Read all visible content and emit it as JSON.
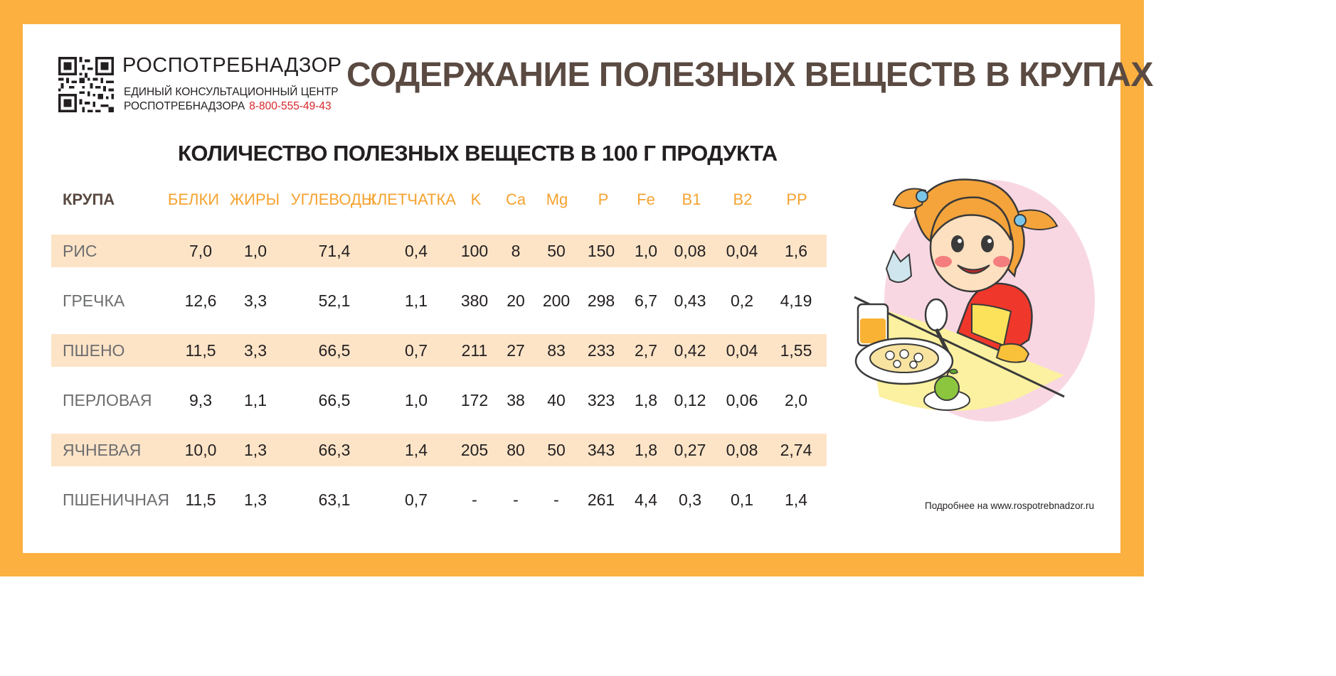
{
  "header": {
    "org_name": "РОСПОТРЕБНАДЗОР",
    "line1": "ЕДИНЫЙ КОНСУЛЬТАЦИОННЫЙ ЦЕНТР",
    "line2": "РОСПОТРЕБНАДЗОРА",
    "phone": "8-800-555-49-43"
  },
  "title": "СОДЕРЖАНИЕ ПОЛЕЗНЫХ ВЕЩЕСТВ В КРУПАХ",
  "subtitle": "КОЛИЧЕСТВО ПОЛЕЗНЫХ ВЕЩЕСТВ В 100 Г ПРОДУКТА",
  "table": {
    "columns": [
      "КРУПА",
      "БЕЛКИ",
      "ЖИРЫ",
      "УГЛЕВОДЫ",
      "КЛЕТЧАТКА",
      "K",
      "Ca",
      "Mg",
      "P",
      "Fe",
      "B1",
      "B2",
      "PP"
    ],
    "rows": [
      [
        "РИС",
        "7,0",
        "1,0",
        "71,4",
        "0,4",
        "100",
        "8",
        "50",
        "150",
        "1,0",
        "0,08",
        "0,04",
        "1,6"
      ],
      [
        "ГРЕЧКА",
        "12,6",
        "3,3",
        "52,1",
        "1,1",
        "380",
        "20",
        "200",
        "298",
        "6,7",
        "0,43",
        "0,2",
        "4,19"
      ],
      [
        "ПШЕНО",
        "11,5",
        "3,3",
        "66,5",
        "0,7",
        "211",
        "27",
        "83",
        "233",
        "2,7",
        "0,42",
        "0,04",
        "1,55"
      ],
      [
        "ПЕРЛОВАЯ",
        "9,3",
        "1,1",
        "66,5",
        "1,0",
        "172",
        "38",
        "40",
        "323",
        "1,8",
        "0,12",
        "0,06",
        "2,0"
      ],
      [
        "ЯЧНЕВАЯ",
        "10,0",
        "1,3",
        "66,3",
        "1,4",
        "205",
        "80",
        "50",
        "343",
        "1,8",
        "0,27",
        "0,08",
        "2,74"
      ],
      [
        "ПШЕНИЧНАЯ",
        "11,5",
        "1,3",
        "63,1",
        "0,7",
        "-",
        "-",
        "-",
        "261",
        "4,4",
        "0,3",
        "0,1",
        "1,4"
      ]
    ]
  },
  "footer_note": "Подробнее на www.rospotrebnadzor.ru",
  "colors": {
    "border": "#fbb040",
    "header_accent": "#f5a331",
    "band": "#fde4c7",
    "title": "#5a4a42",
    "phone": "#d7262b"
  },
  "icons": [
    "qr-code-icon",
    "child-eating-illustration"
  ]
}
